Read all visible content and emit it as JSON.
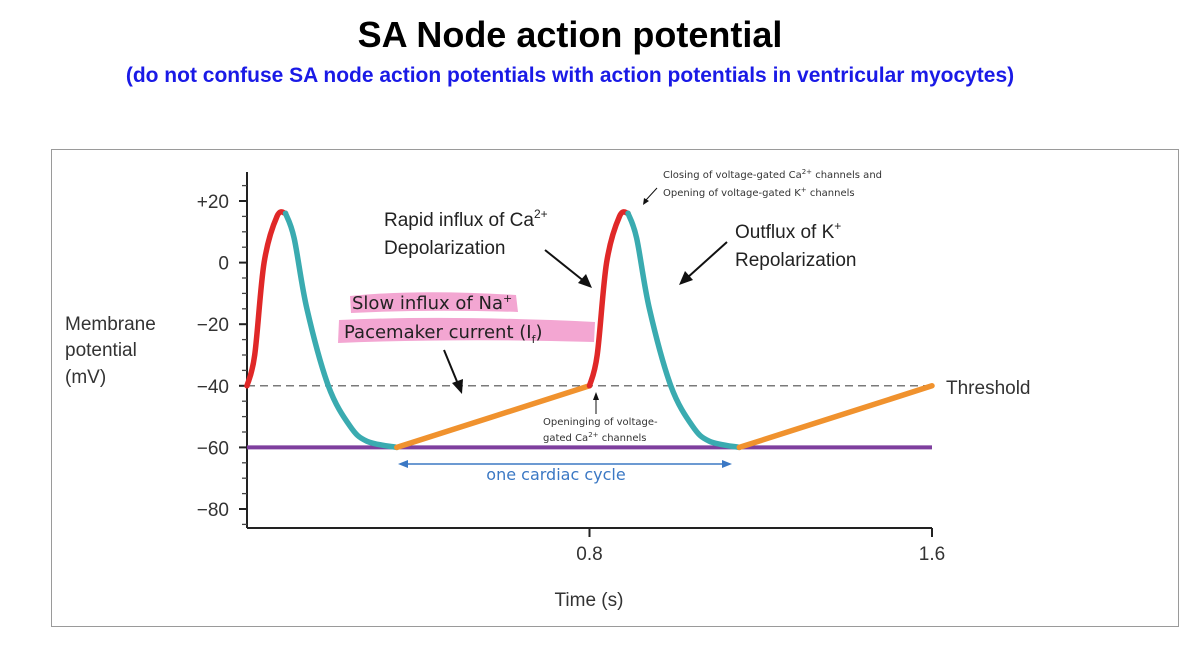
{
  "page": {
    "title": "SA Node action potential",
    "subtitle": "(do not confuse SA node action potentials with action potentials in ventricular myocytes)"
  },
  "chart_data": {
    "type": "line",
    "ylabel_lines": [
      "Membrane",
      "potential",
      "(mV)"
    ],
    "xlabel": "Time (s)",
    "ylim": [
      -85,
      25
    ],
    "xlim": [
      0,
      1.6
    ],
    "yticks": [
      {
        "v": 20,
        "label": "+20"
      },
      {
        "v": 0,
        "label": "0"
      },
      {
        "v": -20,
        "label": "−20"
      },
      {
        "v": -40,
        "label": "−40"
      },
      {
        "v": -60,
        "label": "−60"
      },
      {
        "v": -80,
        "label": "−80"
      }
    ],
    "xticks": [
      {
        "v": 0.8,
        "label": "0.8"
      },
      {
        "v": 1.6,
        "label": "1.6"
      }
    ],
    "threshold": {
      "value": -40,
      "label": "Threshold"
    },
    "resting_line": {
      "value": -60
    },
    "series": [
      {
        "name": "depolarization-1",
        "color": "#e02828",
        "points": [
          [
            0,
            -40
          ],
          [
            0.018,
            -30
          ],
          [
            0.04,
            0
          ],
          [
            0.07,
            15
          ],
          [
            0.09,
            16
          ]
        ]
      },
      {
        "name": "repolarization-1",
        "color": "#3aabb0",
        "points": [
          [
            0.09,
            16
          ],
          [
            0.11,
            8
          ],
          [
            0.14,
            -15
          ],
          [
            0.19,
            -40
          ],
          [
            0.24,
            -53
          ],
          [
            0.28,
            -58
          ],
          [
            0.35,
            -60
          ]
        ]
      },
      {
        "name": "pacemaker-1",
        "color": "#f0922e",
        "points": [
          [
            0.35,
            -60
          ],
          [
            0.8,
            -40
          ]
        ]
      },
      {
        "name": "depolarization-2",
        "color": "#e02828",
        "points": [
          [
            0.8,
            -40
          ],
          [
            0.818,
            -30
          ],
          [
            0.84,
            0
          ],
          [
            0.87,
            15
          ],
          [
            0.89,
            16
          ]
        ]
      },
      {
        "name": "repolarization-2",
        "color": "#3aabb0",
        "points": [
          [
            0.89,
            16
          ],
          [
            0.91,
            8
          ],
          [
            0.94,
            -15
          ],
          [
            0.99,
            -40
          ],
          [
            1.04,
            -53
          ],
          [
            1.08,
            -58
          ],
          [
            1.15,
            -60
          ]
        ]
      },
      {
        "name": "pacemaker-2",
        "color": "#f0922e",
        "points": [
          [
            1.15,
            -60
          ],
          [
            1.6,
            -40
          ]
        ]
      }
    ],
    "annotations": {
      "rapid_influx": {
        "line1_prefix": "Rapid influx of Ca",
        "line1_sup": "2+",
        "line2": "Depolarization"
      },
      "outflux": {
        "line1_prefix": "Outflux of K",
        "line1_sup": "+",
        "line2": "Repolarization"
      },
      "slow_influx": {
        "line1_prefix": "Slow influx of Na",
        "line1_sup": "+",
        "line2_prefix": "Pacemaker current (I",
        "line2_sub": "f",
        "line2_suffix": ")"
      },
      "closing": {
        "line1_a": "Closing of voltage-gated Ca",
        "line1_sup": "2+",
        "line1_b": " channels and",
        "line2_a": "Opening of voltage-gated K",
        "line2_sup": "+",
        "line2_b": " channels"
      },
      "opening": {
        "line1": "Openinging of voltage-",
        "line2_a": "gated Ca",
        "line2_sup": "2+",
        "line2_b": " channels"
      },
      "cycle": {
        "label": "one cardiac cycle"
      }
    },
    "colors": {
      "depolarization": "#e02828",
      "repolarization": "#3aabb0",
      "pacemaker": "#f0922e",
      "resting_line": "#7e3f9e",
      "threshold": "#7a7a7a",
      "cycle": "#3b78c4",
      "highlight": "#f3a6d2",
      "subtitle": "#1a1ae6"
    }
  }
}
